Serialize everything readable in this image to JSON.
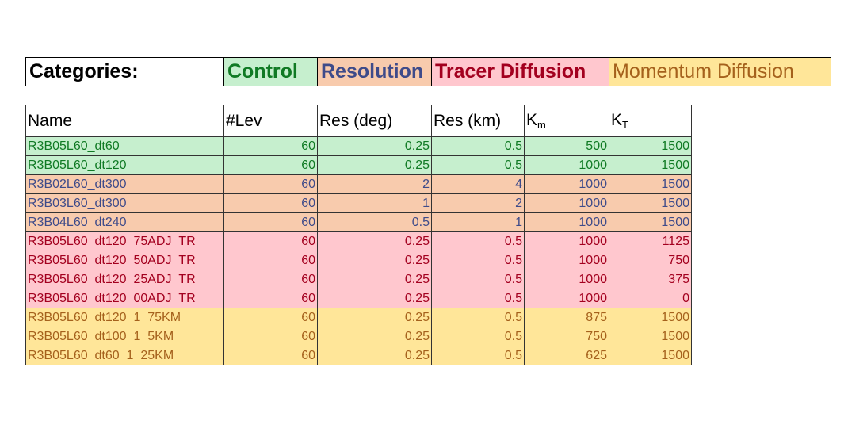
{
  "categories": {
    "label": "Categories:",
    "items": [
      {
        "key": "control",
        "label": "Control"
      },
      {
        "key": "resolution",
        "label": "Resolution"
      },
      {
        "key": "tracer",
        "label": "Tracer Diffusion"
      },
      {
        "key": "momentum",
        "label": "Momentum Diffusion"
      }
    ]
  },
  "table": {
    "headers": {
      "name": "Name",
      "lev": "#Lev",
      "res_deg": "Res (deg)",
      "res_km": "Res (km)",
      "km_base": "K",
      "km_sub": "m",
      "kt_base": "K",
      "kt_sub": "T"
    },
    "rows": [
      {
        "category": "control",
        "name": "R3B05L60_dt60",
        "lev": "60",
        "res_deg": "0.25",
        "res_km": "0.5",
        "km": "500",
        "kt": "1500"
      },
      {
        "category": "control",
        "name": "R3B05L60_dt120",
        "lev": "60",
        "res_deg": "0.25",
        "res_km": "0.5",
        "km": "1000",
        "kt": "1500"
      },
      {
        "category": "resolution",
        "name": "R3B02L60_dt300",
        "lev": "60",
        "res_deg": "2",
        "res_km": "4",
        "km": "1000",
        "kt": "1500"
      },
      {
        "category": "resolution",
        "name": "R3B03L60_dt300",
        "lev": "60",
        "res_deg": "1",
        "res_km": "2",
        "km": "1000",
        "kt": "1500"
      },
      {
        "category": "resolution",
        "name": "R3B04L60_dt240",
        "lev": "60",
        "res_deg": "0.5",
        "res_km": "1",
        "km": "1000",
        "kt": "1500"
      },
      {
        "category": "tracer",
        "name": "R3B05L60_dt120_75ADJ_TR",
        "lev": "60",
        "res_deg": "0.25",
        "res_km": "0.5",
        "km": "1000",
        "kt": "1125"
      },
      {
        "category": "tracer",
        "name": "R3B05L60_dt120_50ADJ_TR",
        "lev": "60",
        "res_deg": "0.25",
        "res_km": "0.5",
        "km": "1000",
        "kt": "750"
      },
      {
        "category": "tracer",
        "name": "R3B05L60_dt120_25ADJ_TR",
        "lev": "60",
        "res_deg": "0.25",
        "res_km": "0.5",
        "km": "1000",
        "kt": "375"
      },
      {
        "category": "tracer",
        "name": "R3B05L60_dt120_00ADJ_TR",
        "lev": "60",
        "res_deg": "0.25",
        "res_km": "0.5",
        "km": "1000",
        "kt": "0"
      },
      {
        "category": "momentum",
        "name": "R3B05L60_dt120_1_75KM",
        "lev": "60",
        "res_deg": "0.25",
        "res_km": "0.5",
        "km": "875",
        "kt": "1500"
      },
      {
        "category": "momentum",
        "name": "R3B05L60_dt100_1_5KM",
        "lev": "60",
        "res_deg": "0.25",
        "res_km": "0.5",
        "km": "750",
        "kt": "1500"
      },
      {
        "category": "momentum",
        "name": "R3B05L60_dt60_1_25KM",
        "lev": "60",
        "res_deg": "0.25",
        "res_km": "0.5",
        "km": "625",
        "kt": "1500"
      }
    ]
  },
  "colors": {
    "control_bg": "#c6efce",
    "control_text": "#107a24",
    "resolution_bg": "#f8cbad",
    "resolution_text": "#3e4b8a",
    "tracer_bg": "#ffc7ce",
    "tracer_text": "#a3001f",
    "momentum_bg": "#ffe699",
    "momentum_text": "#a5611c"
  }
}
